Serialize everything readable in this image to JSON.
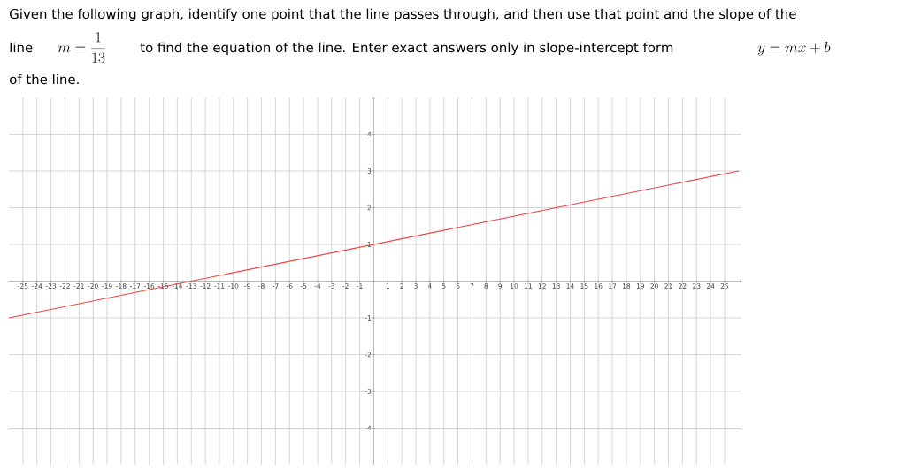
{
  "chart_data": {
    "type": "line",
    "title": "Given the following graph, identify one point that the line passes through, and then use that point and the slope of the",
    "annotations": [
      "line",
      "m=\\frac{1}{13}",
      "to find the equation of the line. Enter exact answers only in slope-intercept form",
      "y=mx+b",
      "of the line."
    ],
    "x": [
      -26,
      26
    ],
    "series": [
      {
        "color": "#ee4444",
        "values": [
          -1,
          3
        ]
      }
    ],
    "xlim": [
      -26,
      26.2
    ],
    "ylim": [
      -5,
      5
    ],
    "xticks": [
      -25,
      -24,
      -23,
      -22,
      -21,
      -20,
      -19,
      -18,
      -17,
      -16,
      -15,
      -14,
      -13,
      -12,
      -11,
      -10,
      -9,
      -8,
      -7,
      -6,
      -5,
      -4,
      -3,
      -2,
      -1,
      1,
      2,
      3,
      4,
      5,
      6,
      7,
      8,
      9,
      10,
      11,
      12,
      13,
      14,
      15,
      16,
      17,
      18,
      19,
      20,
      21,
      22,
      23,
      24,
      25
    ],
    "yticks": [
      -4,
      -3,
      -2,
      -1,
      1,
      2,
      3,
      4
    ],
    "grid": true,
    "marker": "none"
  }
}
